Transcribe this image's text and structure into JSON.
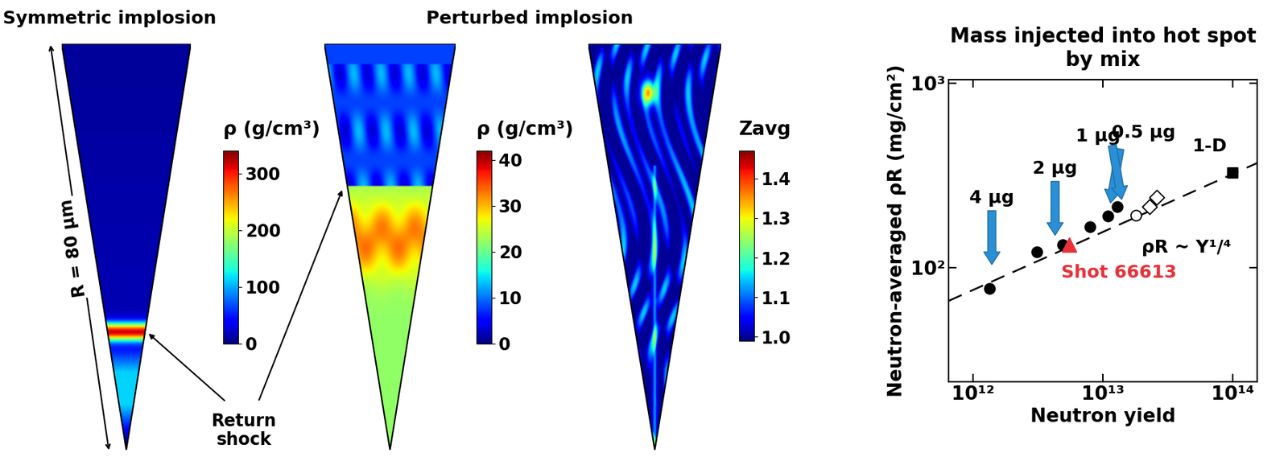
{
  "chart_data": [
    {
      "type": "image",
      "title": "Symmetric implosion",
      "colorbar_label": "ρ (g/cm³)",
      "colorbar_range": [
        0,
        340
      ],
      "colorbar_ticks": [
        0,
        100,
        200,
        300
      ],
      "annotations": [
        {
          "text": "R = 80 μm"
        },
        {
          "text": "Return\nshock"
        }
      ]
    },
    {
      "type": "image",
      "title": "Perturbed implosion",
      "colorbar_label": "ρ (g/cm³)",
      "colorbar_range": [
        0,
        42
      ],
      "colorbar_ticks": [
        0,
        10,
        20,
        30,
        40
      ]
    },
    {
      "type": "image",
      "colorbar_label": "Zavg",
      "colorbar_range": [
        0.99,
        1.47
      ],
      "colorbar_ticks": [
        {
          "value": 1.0,
          "label": "1.0"
        },
        1.1,
        1.2,
        1.3,
        1.4
      ]
    },
    {
      "type": "scatter",
      "title": "Mass injected into hot spot\nby mix",
      "x_label": "Neutron yield",
      "y_label": "Neutron-averaged ρR (mg/cm²)",
      "log": true,
      "xlim": [
        650000000000.0,
        155000000000000.0
      ],
      "ylim": [
        24,
        1050
      ],
      "xticks": [
        {
          "value": 1000000000000.0,
          "label": "10¹²"
        },
        {
          "value": 10000000000000.0,
          "label": "10¹³"
        },
        {
          "value": 100000000000000.0,
          "label": "10¹⁴"
        }
      ],
      "yticks": [
        {
          "value": 100,
          "label": "10²"
        },
        {
          "value": 1000,
          "label": "10³"
        }
      ],
      "series": [
        {
          "type": "line",
          "name": "ρR ~ Y¹/⁴",
          "line_style": "dashed",
          "color": "#000000",
          "x": [
            650000000000.0,
            155000000000000.0
          ],
          "values": [
            66,
            370
          ]
        },
        {
          "type": "scatter",
          "marker": "circle",
          "color": "#000000",
          "x": [
            1350000000000.0,
            3100000000000.0,
            4900000000000.0,
            8000000000000.0,
            11000000000000.0,
            13000000000000.0
          ],
          "values": [
            77,
            122,
            133,
            167,
            191,
            214
          ]
        },
        {
          "type": "scatter",
          "marker": "open_circle",
          "color": "#000000",
          "x": [
            18000000000000.0
          ],
          "values": [
            193
          ]
        },
        {
          "type": "scatter",
          "marker": "open_diamond",
          "color": "#000000",
          "x": [
            23000000000000.0,
            26000000000000.0
          ],
          "values": [
            215,
            240
          ]
        },
        {
          "type": "scatter",
          "name": "Shot 66613",
          "marker": "triangle",
          "color": "#e8313a",
          "x": [
            5500000000000.0
          ],
          "values": [
            133
          ]
        },
        {
          "type": "scatter",
          "name": "1-D",
          "marker": "square",
          "color": "#000000",
          "x": [
            100000000000000.0
          ],
          "values": [
            327
          ]
        }
      ],
      "annotations": [
        {
          "text": "4 μg",
          "x": 1400000000000.0,
          "y": 104
        },
        {
          "text": "2 μg",
          "x": 4300000000000.0,
          "y": 150
        },
        {
          "text": "1 μg",
          "x": 11500000000000.0,
          "y": 225
        },
        {
          "text": "0.5 μg",
          "x": 14000000000000.0,
          "y": 235
        }
      ]
    }
  ]
}
